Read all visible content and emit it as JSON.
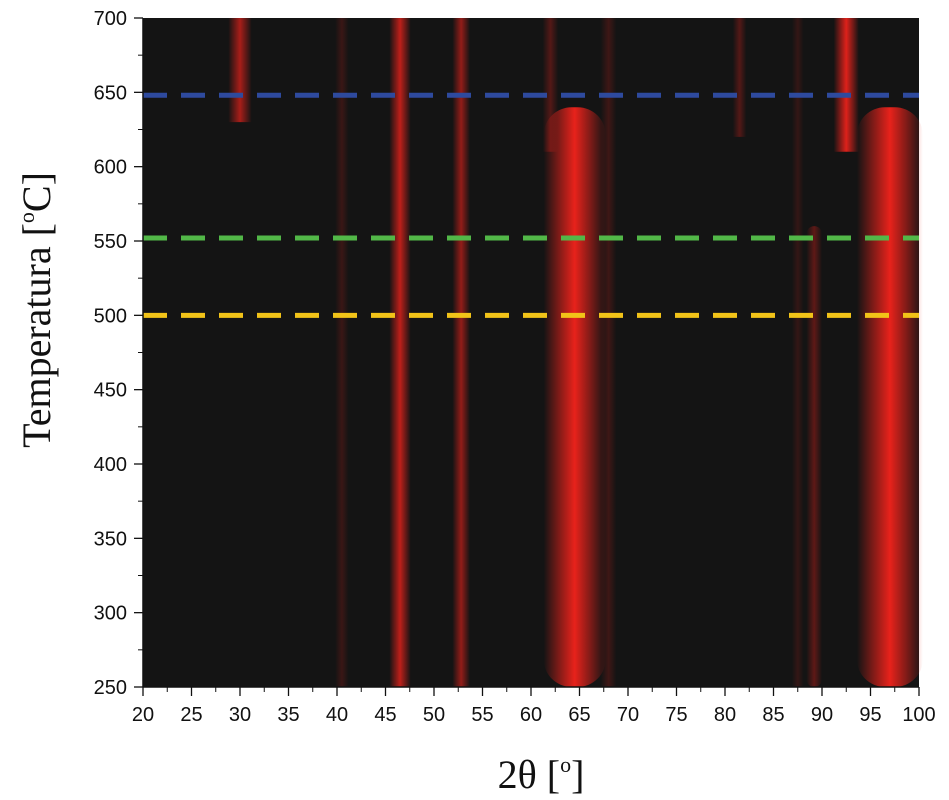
{
  "chart_data": {
    "type": "heatmap",
    "xlabel_base": "2θ [",
    "xlabel_sup": "o",
    "xlabel_end": "]",
    "ylabel_base": "Temperatura [",
    "ylabel_sup": "o",
    "ylabel_end": "C]",
    "xlim": [
      20,
      100
    ],
    "ylim": [
      250,
      700
    ],
    "x_ticks": [
      20,
      25,
      30,
      35,
      40,
      45,
      50,
      55,
      60,
      65,
      70,
      75,
      80,
      85,
      90,
      95,
      100
    ],
    "y_ticks": [
      250,
      300,
      350,
      400,
      450,
      500,
      550,
      600,
      650,
      700
    ],
    "background_color": "#141414",
    "intensity_color": "#e8221b",
    "reference_lines": [
      {
        "temperature": 648,
        "color": "#2e4a9e"
      },
      {
        "temperature": 552,
        "color": "#52b848"
      },
      {
        "temperature": 500,
        "color": "#f2c318"
      }
    ],
    "bands": [
      {
        "center": 64.5,
        "width": 3.2,
        "t_min": 250,
        "t_max": 640,
        "intensity": 1.0
      },
      {
        "center": 97.0,
        "width": 3.4,
        "t_min": 250,
        "t_max": 640,
        "intensity": 1.0
      },
      {
        "center": 46.5,
        "width": 1.1,
        "t_min": 250,
        "t_max": 700,
        "intensity": 0.8
      },
      {
        "center": 52.8,
        "width": 0.9,
        "t_min": 250,
        "t_max": 700,
        "intensity": 0.6
      },
      {
        "center": 30.0,
        "width": 1.2,
        "t_min": 630,
        "t_max": 700,
        "intensity": 0.7
      },
      {
        "center": 92.5,
        "width": 1.3,
        "t_min": 610,
        "t_max": 700,
        "intensity": 0.95
      },
      {
        "center": 89.2,
        "width": 0.8,
        "t_min": 250,
        "t_max": 560,
        "intensity": 0.35
      },
      {
        "center": 40.5,
        "width": 0.7,
        "t_min": 250,
        "t_max": 700,
        "intensity": 0.18
      },
      {
        "center": 68.0,
        "width": 0.8,
        "t_min": 250,
        "t_max": 700,
        "intensity": 0.2
      },
      {
        "center": 81.5,
        "width": 0.7,
        "t_min": 620,
        "t_max": 700,
        "intensity": 0.3
      },
      {
        "center": 62.0,
        "width": 0.8,
        "t_min": 610,
        "t_max": 700,
        "intensity": 0.3
      },
      {
        "center": 87.5,
        "width": 0.6,
        "t_min": 250,
        "t_max": 700,
        "intensity": 0.15
      }
    ]
  }
}
